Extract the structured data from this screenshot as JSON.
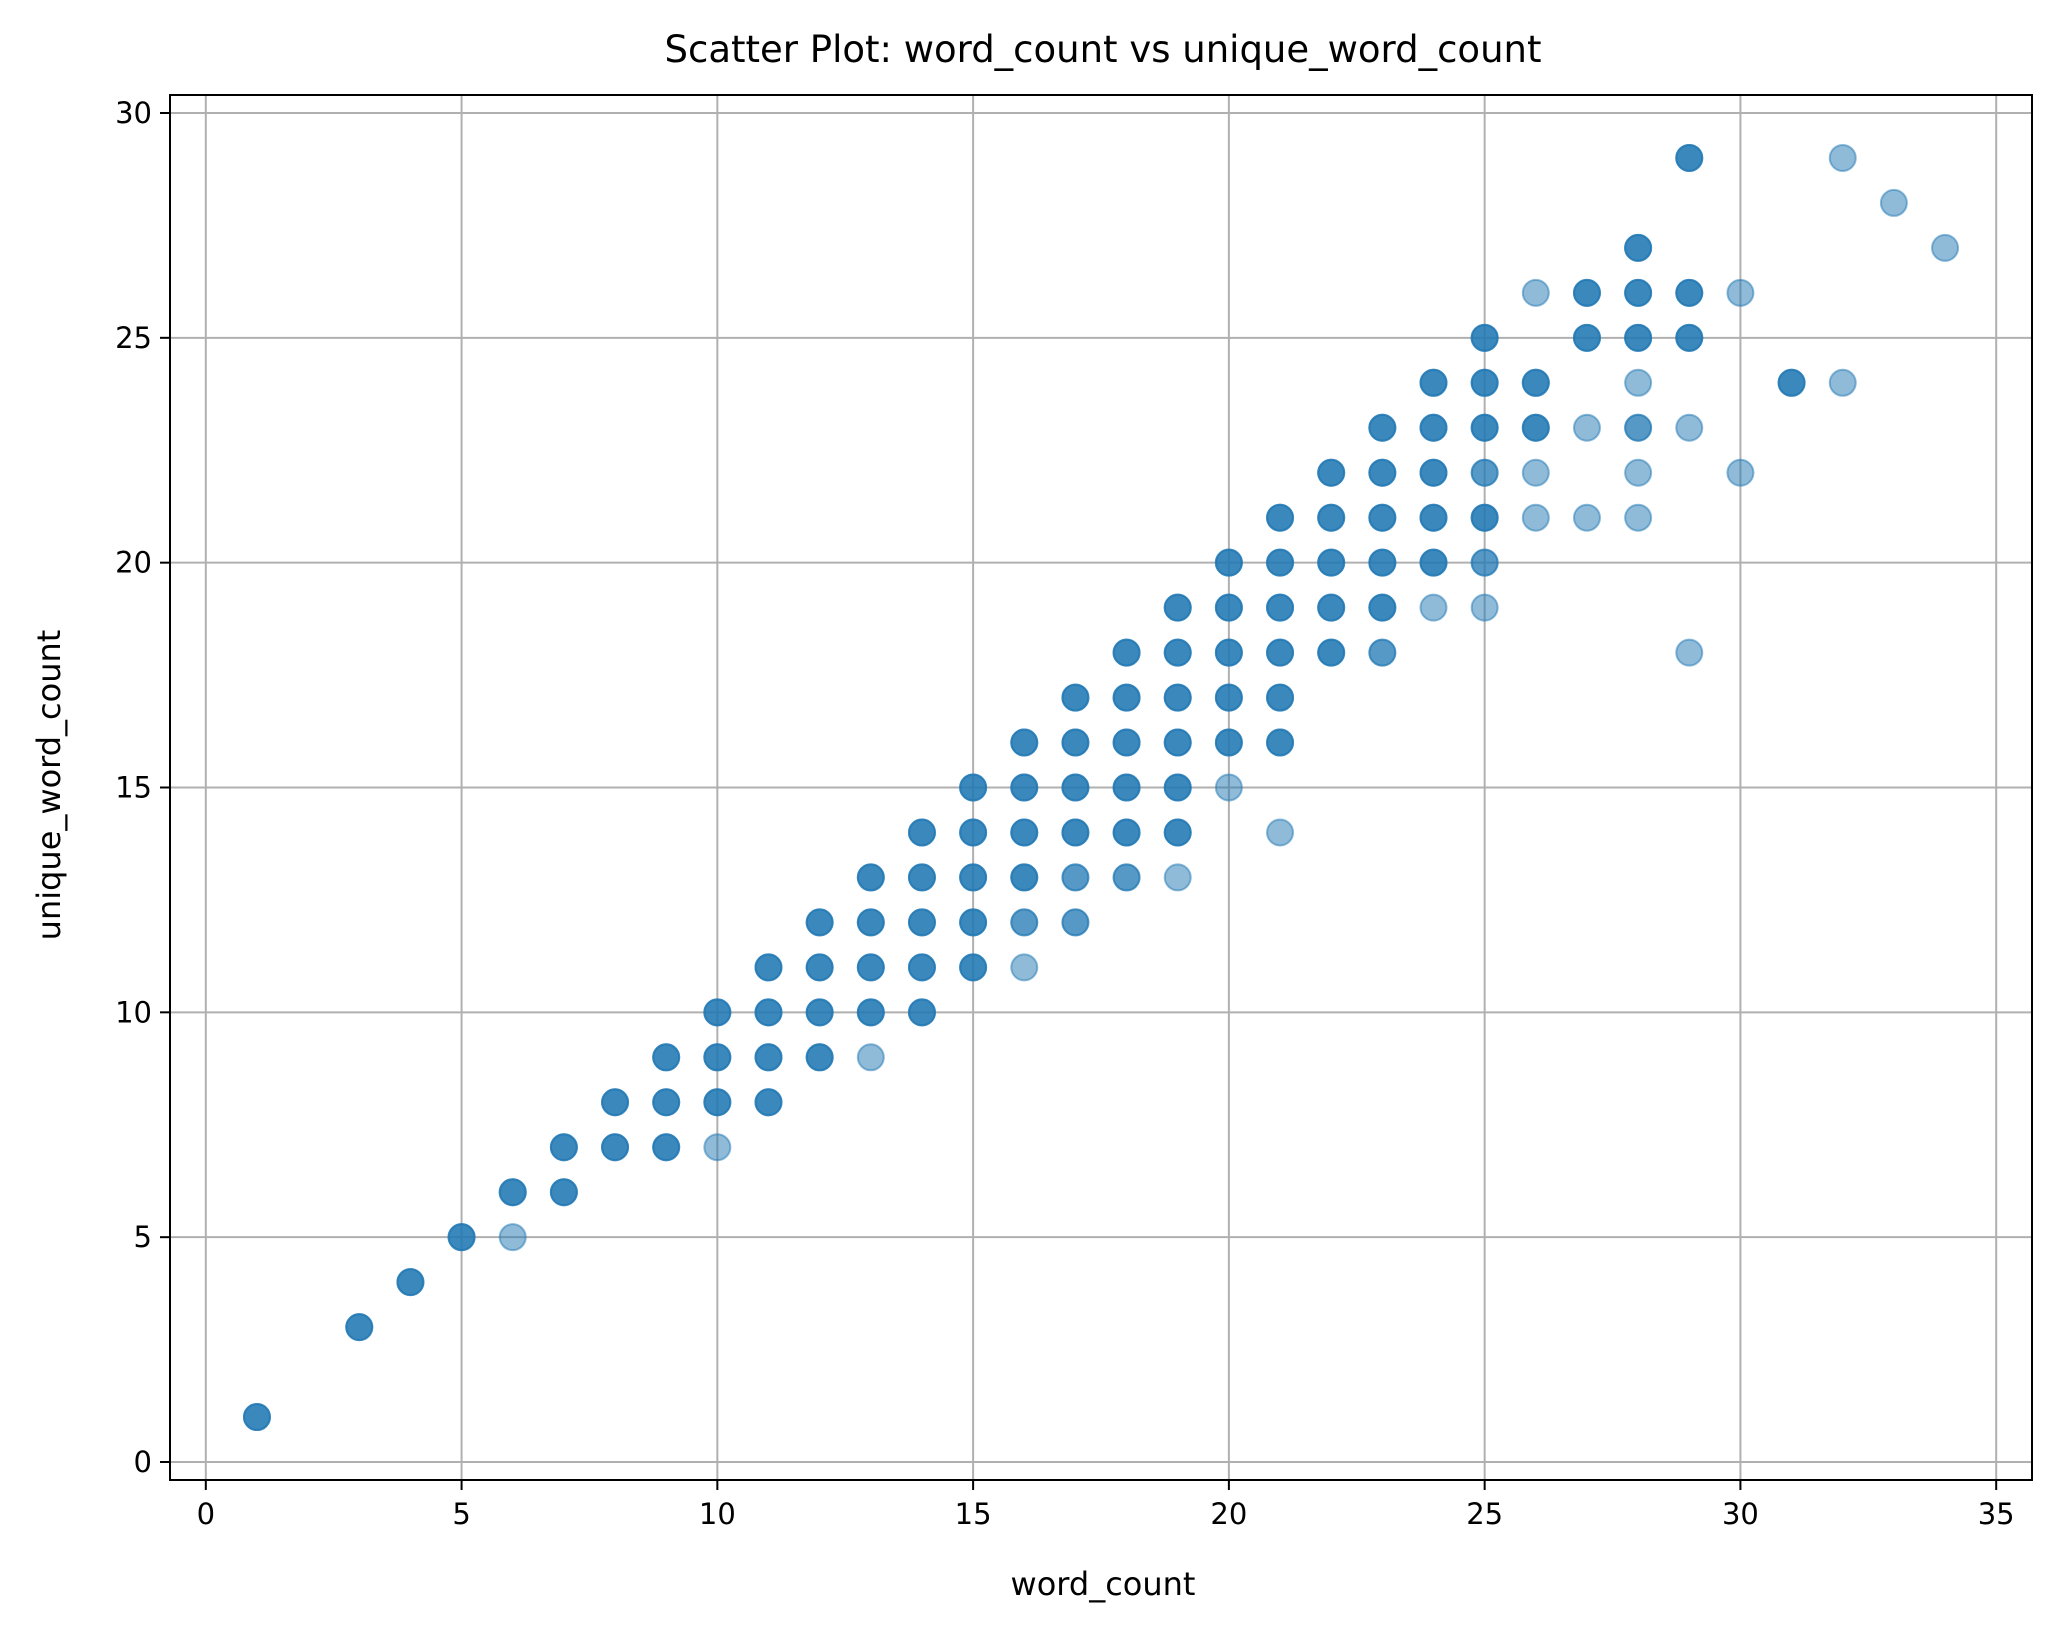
{
  "chart_data": {
    "type": "scatter",
    "title": "Scatter Plot: word_count vs unique_word_count",
    "xlabel": "word_count",
    "ylabel": "unique_word_count",
    "xlim": [
      -0.7,
      35.7
    ],
    "ylim": [
      -0.4,
      30.4
    ],
    "xticks": [
      0,
      5,
      10,
      15,
      20,
      25,
      30,
      35
    ],
    "yticks": [
      0,
      5,
      10,
      15,
      20,
      25,
      30
    ],
    "grid": true,
    "legend": "none",
    "marker_color": "#1f77b4",
    "marker_alpha": 0.5,
    "series": [
      {
        "points": [
          {
            "x": 1,
            "y": 1,
            "n": 3
          },
          {
            "x": 3,
            "y": 3,
            "n": 3
          },
          {
            "x": 4,
            "y": 4,
            "n": 3
          },
          {
            "x": 5,
            "y": 5,
            "n": 3
          },
          {
            "x": 6,
            "y": 5,
            "n": 1
          },
          {
            "x": 6,
            "y": 6,
            "n": 3
          },
          {
            "x": 7,
            "y": 6,
            "n": 3
          },
          {
            "x": 7,
            "y": 7,
            "n": 3
          },
          {
            "x": 8,
            "y": 7,
            "n": 3
          },
          {
            "x": 8,
            "y": 8,
            "n": 3
          },
          {
            "x": 9,
            "y": 7,
            "n": 3
          },
          {
            "x": 9,
            "y": 8,
            "n": 3
          },
          {
            "x": 9,
            "y": 9,
            "n": 3
          },
          {
            "x": 10,
            "y": 7,
            "n": 1
          },
          {
            "x": 10,
            "y": 8,
            "n": 3
          },
          {
            "x": 10,
            "y": 9,
            "n": 3
          },
          {
            "x": 10,
            "y": 10,
            "n": 3
          },
          {
            "x": 11,
            "y": 8,
            "n": 3
          },
          {
            "x": 11,
            "y": 9,
            "n": 3
          },
          {
            "x": 11,
            "y": 10,
            "n": 3
          },
          {
            "x": 11,
            "y": 11,
            "n": 3
          },
          {
            "x": 12,
            "y": 9,
            "n": 3
          },
          {
            "x": 12,
            "y": 10,
            "n": 3
          },
          {
            "x": 12,
            "y": 11,
            "n": 3
          },
          {
            "x": 12,
            "y": 12,
            "n": 3
          },
          {
            "x": 13,
            "y": 9,
            "n": 1
          },
          {
            "x": 13,
            "y": 10,
            "n": 3
          },
          {
            "x": 13,
            "y": 11,
            "n": 3
          },
          {
            "x": 13,
            "y": 12,
            "n": 3
          },
          {
            "x": 13,
            "y": 13,
            "n": 3
          },
          {
            "x": 14,
            "y": 10,
            "n": 3
          },
          {
            "x": 14,
            "y": 11,
            "n": 3
          },
          {
            "x": 14,
            "y": 12,
            "n": 3
          },
          {
            "x": 14,
            "y": 13,
            "n": 3
          },
          {
            "x": 14,
            "y": 14,
            "n": 3
          },
          {
            "x": 15,
            "y": 11,
            "n": 3
          },
          {
            "x": 15,
            "y": 12,
            "n": 3
          },
          {
            "x": 15,
            "y": 13,
            "n": 3
          },
          {
            "x": 15,
            "y": 14,
            "n": 3
          },
          {
            "x": 15,
            "y": 15,
            "n": 3
          },
          {
            "x": 16,
            "y": 11,
            "n": 1
          },
          {
            "x": 16,
            "y": 12,
            "n": 2
          },
          {
            "x": 16,
            "y": 13,
            "n": 3
          },
          {
            "x": 16,
            "y": 14,
            "n": 3
          },
          {
            "x": 16,
            "y": 15,
            "n": 3
          },
          {
            "x": 16,
            "y": 16,
            "n": 3
          },
          {
            "x": 17,
            "y": 12,
            "n": 2
          },
          {
            "x": 17,
            "y": 13,
            "n": 2
          },
          {
            "x": 17,
            "y": 14,
            "n": 3
          },
          {
            "x": 17,
            "y": 15,
            "n": 3
          },
          {
            "x": 17,
            "y": 16,
            "n": 3
          },
          {
            "x": 17,
            "y": 17,
            "n": 3
          },
          {
            "x": 18,
            "y": 13,
            "n": 2
          },
          {
            "x": 18,
            "y": 14,
            "n": 3
          },
          {
            "x": 18,
            "y": 15,
            "n": 3
          },
          {
            "x": 18,
            "y": 16,
            "n": 3
          },
          {
            "x": 18,
            "y": 17,
            "n": 3
          },
          {
            "x": 18,
            "y": 18,
            "n": 3
          },
          {
            "x": 19,
            "y": 13,
            "n": 1
          },
          {
            "x": 19,
            "y": 14,
            "n": 3
          },
          {
            "x": 19,
            "y": 15,
            "n": 3
          },
          {
            "x": 19,
            "y": 16,
            "n": 3
          },
          {
            "x": 19,
            "y": 17,
            "n": 3
          },
          {
            "x": 19,
            "y": 18,
            "n": 3
          },
          {
            "x": 19,
            "y": 19,
            "n": 3
          },
          {
            "x": 20,
            "y": 15,
            "n": 1
          },
          {
            "x": 20,
            "y": 16,
            "n": 3
          },
          {
            "x": 20,
            "y": 17,
            "n": 3
          },
          {
            "x": 20,
            "y": 18,
            "n": 3
          },
          {
            "x": 20,
            "y": 19,
            "n": 3
          },
          {
            "x": 20,
            "y": 20,
            "n": 3
          },
          {
            "x": 21,
            "y": 14,
            "n": 1
          },
          {
            "x": 21,
            "y": 16,
            "n": 3
          },
          {
            "x": 21,
            "y": 17,
            "n": 3
          },
          {
            "x": 21,
            "y": 18,
            "n": 3
          },
          {
            "x": 21,
            "y": 19,
            "n": 3
          },
          {
            "x": 21,
            "y": 20,
            "n": 3
          },
          {
            "x": 21,
            "y": 21,
            "n": 3
          },
          {
            "x": 22,
            "y": 18,
            "n": 3
          },
          {
            "x": 22,
            "y": 19,
            "n": 3
          },
          {
            "x": 22,
            "y": 20,
            "n": 3
          },
          {
            "x": 22,
            "y": 21,
            "n": 3
          },
          {
            "x": 22,
            "y": 22,
            "n": 3
          },
          {
            "x": 23,
            "y": 18,
            "n": 2
          },
          {
            "x": 23,
            "y": 19,
            "n": 3
          },
          {
            "x": 23,
            "y": 20,
            "n": 3
          },
          {
            "x": 23,
            "y": 21,
            "n": 3
          },
          {
            "x": 23,
            "y": 22,
            "n": 3
          },
          {
            "x": 23,
            "y": 23,
            "n": 3
          },
          {
            "x": 24,
            "y": 19,
            "n": 1
          },
          {
            "x": 24,
            "y": 20,
            "n": 3
          },
          {
            "x": 24,
            "y": 21,
            "n": 3
          },
          {
            "x": 24,
            "y": 22,
            "n": 3
          },
          {
            "x": 24,
            "y": 23,
            "n": 3
          },
          {
            "x": 24,
            "y": 24,
            "n": 3
          },
          {
            "x": 25,
            "y": 19,
            "n": 1
          },
          {
            "x": 25,
            "y": 20,
            "n": 2
          },
          {
            "x": 25,
            "y": 21,
            "n": 3
          },
          {
            "x": 25,
            "y": 22,
            "n": 2
          },
          {
            "x": 25,
            "y": 23,
            "n": 3
          },
          {
            "x": 25,
            "y": 24,
            "n": 3
          },
          {
            "x": 25,
            "y": 25,
            "n": 3
          },
          {
            "x": 26,
            "y": 21,
            "n": 1
          },
          {
            "x": 26,
            "y": 22,
            "n": 1
          },
          {
            "x": 26,
            "y": 23,
            "n": 3
          },
          {
            "x": 26,
            "y": 24,
            "n": 3
          },
          {
            "x": 26,
            "y": 26,
            "n": 1
          },
          {
            "x": 27,
            "y": 21,
            "n": 1
          },
          {
            "x": 27,
            "y": 23,
            "n": 1
          },
          {
            "x": 27,
            "y": 25,
            "n": 3
          },
          {
            "x": 27,
            "y": 26,
            "n": 3
          },
          {
            "x": 28,
            "y": 21,
            "n": 1
          },
          {
            "x": 28,
            "y": 22,
            "n": 1
          },
          {
            "x": 28,
            "y": 23,
            "n": 2
          },
          {
            "x": 28,
            "y": 24,
            "n": 1
          },
          {
            "x": 28,
            "y": 25,
            "n": 3
          },
          {
            "x": 28,
            "y": 26,
            "n": 3
          },
          {
            "x": 28,
            "y": 27,
            "n": 3
          },
          {
            "x": 29,
            "y": 18,
            "n": 1
          },
          {
            "x": 29,
            "y": 23,
            "n": 1
          },
          {
            "x": 29,
            "y": 25,
            "n": 3
          },
          {
            "x": 29,
            "y": 26,
            "n": 3
          },
          {
            "x": 29,
            "y": 29,
            "n": 3
          },
          {
            "x": 30,
            "y": 22,
            "n": 1
          },
          {
            "x": 30,
            "y": 26,
            "n": 1
          },
          {
            "x": 31,
            "y": 24,
            "n": 3
          },
          {
            "x": 32,
            "y": 24,
            "n": 1
          },
          {
            "x": 32,
            "y": 29,
            "n": 1
          },
          {
            "x": 33,
            "y": 28,
            "n": 1
          },
          {
            "x": 34,
            "y": 27,
            "n": 1
          }
        ]
      }
    ]
  }
}
